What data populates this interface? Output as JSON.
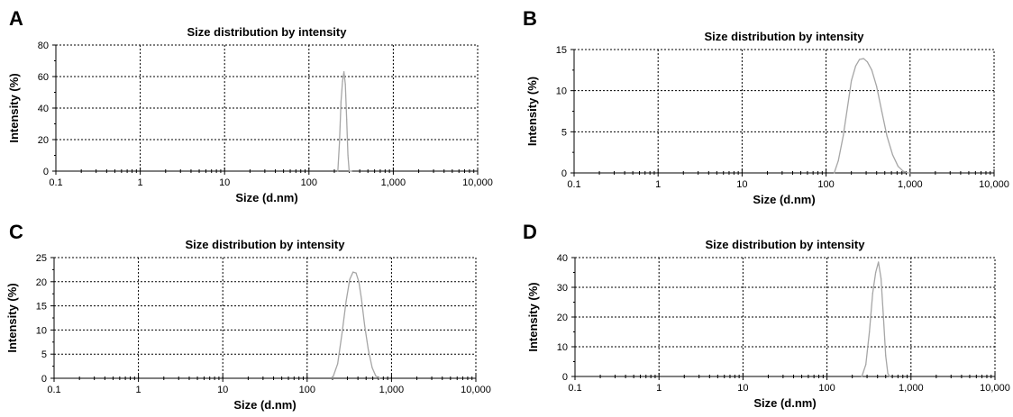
{
  "figure": {
    "panels": [
      "A",
      "B",
      "C",
      "D"
    ]
  },
  "chart_data": [
    {
      "panel": "A",
      "type": "line",
      "title": "Size distribution by intensity",
      "xlabel": "Size (d.nm)",
      "ylabel": "Intensity (%)",
      "x_scale": "log",
      "xlim": [
        0.1,
        10000
      ],
      "ylim": [
        0,
        80
      ],
      "x_ticks": [
        0.1,
        1,
        10,
        100,
        1000,
        10000
      ],
      "x_tick_labels": [
        "0.1",
        "1",
        "10",
        "100",
        "1,000",
        "10,000"
      ],
      "y_ticks": [
        0,
        20,
        40,
        60,
        80
      ],
      "y_tick_labels": [
        "0",
        "20",
        "40",
        "60",
        "80"
      ],
      "grid": true,
      "series_color": "#a6a6a6",
      "series": [
        {
          "x": [
            220,
            230,
            240,
            250,
            260,
            270,
            280,
            290,
            300,
            320
          ],
          "y": [
            0,
            18,
            44,
            57,
            63,
            55,
            33,
            10,
            0,
            0
          ]
        }
      ]
    },
    {
      "panel": "B",
      "type": "line",
      "title": "Size distribution by intensity",
      "xlabel": "Size (d.nm)",
      "ylabel": "Intensity (%)",
      "x_scale": "log",
      "xlim": [
        0.1,
        10000
      ],
      "ylim": [
        0,
        15
      ],
      "x_ticks": [
        0.1,
        1,
        10,
        100,
        1000,
        10000
      ],
      "x_tick_labels": [
        "0.1",
        "1",
        "10",
        "100",
        "1,000",
        "10,000"
      ],
      "y_ticks": [
        0,
        5,
        10,
        15
      ],
      "y_tick_labels": [
        "0",
        "5",
        "10",
        "15"
      ],
      "grid": true,
      "series_color": "#a6a6a6",
      "series": [
        {
          "x": [
            125,
            140,
            160,
            180,
            200,
            225,
            250,
            280,
            310,
            350,
            400,
            460,
            530,
            620,
            720,
            830,
            950,
            1000
          ],
          "y": [
            0,
            1.5,
            4.5,
            8,
            11.2,
            13,
            13.8,
            13.9,
            13.5,
            12.5,
            10.5,
            7.5,
            4.5,
            2.2,
            0.8,
            0.2,
            0,
            0
          ]
        }
      ]
    },
    {
      "panel": "C",
      "type": "line",
      "title": "Size distribution by intensity",
      "xlabel": "Size (d.nm)",
      "ylabel": "Intensity (%)",
      "x_scale": "log",
      "xlim": [
        0.1,
        10000
      ],
      "ylim": [
        0,
        25
      ],
      "x_ticks": [
        0.1,
        1,
        10,
        100,
        1000,
        10000
      ],
      "x_tick_labels": [
        "0.1",
        "1",
        "10",
        "100",
        "1,000",
        "10,000"
      ],
      "y_ticks": [
        0,
        5,
        10,
        15,
        20,
        25
      ],
      "y_tick_labels": [
        "0",
        "5",
        "10",
        "15",
        "20",
        "25"
      ],
      "grid": true,
      "series_color": "#a6a6a6",
      "series": [
        {
          "x": [
            200,
            230,
            260,
            290,
            320,
            350,
            380,
            410,
            440,
            480,
            530,
            590,
            650,
            720
          ],
          "y": [
            0,
            3,
            9.5,
            16,
            20.5,
            22,
            21.8,
            20,
            16.5,
            11,
            6,
            2.2,
            0.5,
            0
          ]
        }
      ]
    },
    {
      "panel": "D",
      "type": "line",
      "title": "Size distribution by intensity",
      "xlabel": "Size (d.nm)",
      "ylabel": "Intensity (%)",
      "x_scale": "log",
      "xlim": [
        0.1,
        10000
      ],
      "ylim": [
        0,
        40
      ],
      "x_ticks": [
        0.1,
        1,
        10,
        100,
        1000,
        10000
      ],
      "x_tick_labels": [
        "0.1",
        "1",
        "10",
        "100",
        "1,000",
        "10,000"
      ],
      "y_ticks": [
        0,
        10,
        20,
        30,
        40
      ],
      "y_tick_labels": [
        "0",
        "10",
        "20",
        "30",
        "40"
      ],
      "grid": true,
      "series_color": "#a6a6a6",
      "series": [
        {
          "x": [
            260,
            290,
            320,
            350,
            380,
            410,
            440,
            470,
            500,
            530,
            560
          ],
          "y": [
            0,
            4,
            15,
            28,
            35,
            38.5,
            33,
            20,
            7,
            1,
            0
          ]
        }
      ]
    }
  ]
}
